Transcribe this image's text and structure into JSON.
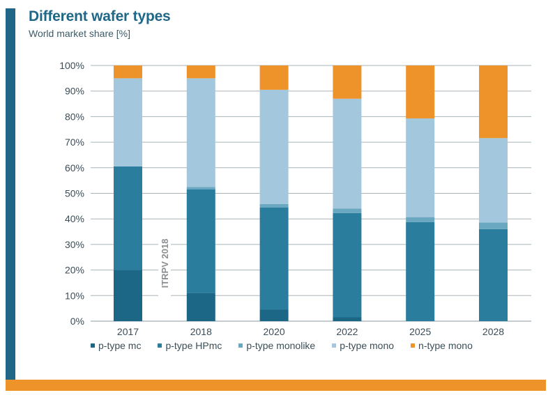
{
  "header": {
    "title": "Different wafer types",
    "subtitle": "World market share [%]"
  },
  "colors": {
    "accent_left": "#1f6687",
    "accent_bottom": "#ee922a"
  },
  "chart_data": {
    "type": "bar",
    "stacked": true,
    "title": "Different wafer types",
    "subtitle": "World market share [%]",
    "xlabel": "",
    "ylabel": "",
    "ylim": [
      0,
      100
    ],
    "yticks": [
      "0%",
      "10%",
      "20%",
      "30%",
      "40%",
      "50%",
      "60%",
      "70%",
      "80%",
      "90%",
      "100%"
    ],
    "grid": true,
    "legend_position": "bottom",
    "annotation": "ITRPV 2018",
    "categories": [
      "2017",
      "2018",
      "2020",
      "2022",
      "2025",
      "2028"
    ],
    "series": [
      {
        "name": "p-type mc",
        "color": "#1b6785",
        "values": [
          20,
          11,
          4.5,
          1.5,
          0,
          0
        ]
      },
      {
        "name": "p-type HPmc",
        "color": "#2a7d9c",
        "values": [
          40.5,
          40.5,
          40,
          40.8,
          38.7,
          36
        ]
      },
      {
        "name": "p-type monolike",
        "color": "#6aa7c0",
        "values": [
          0,
          1,
          1.3,
          1.7,
          2,
          2.6
        ]
      },
      {
        "name": "p-type mono",
        "color": "#a3c7dc",
        "values": [
          34.5,
          42.5,
          44.7,
          43,
          38.6,
          33
        ]
      },
      {
        "name": "n-type mono",
        "color": "#ee922a",
        "values": [
          5,
          5,
          9.5,
          13,
          20.7,
          28.4
        ]
      }
    ]
  }
}
